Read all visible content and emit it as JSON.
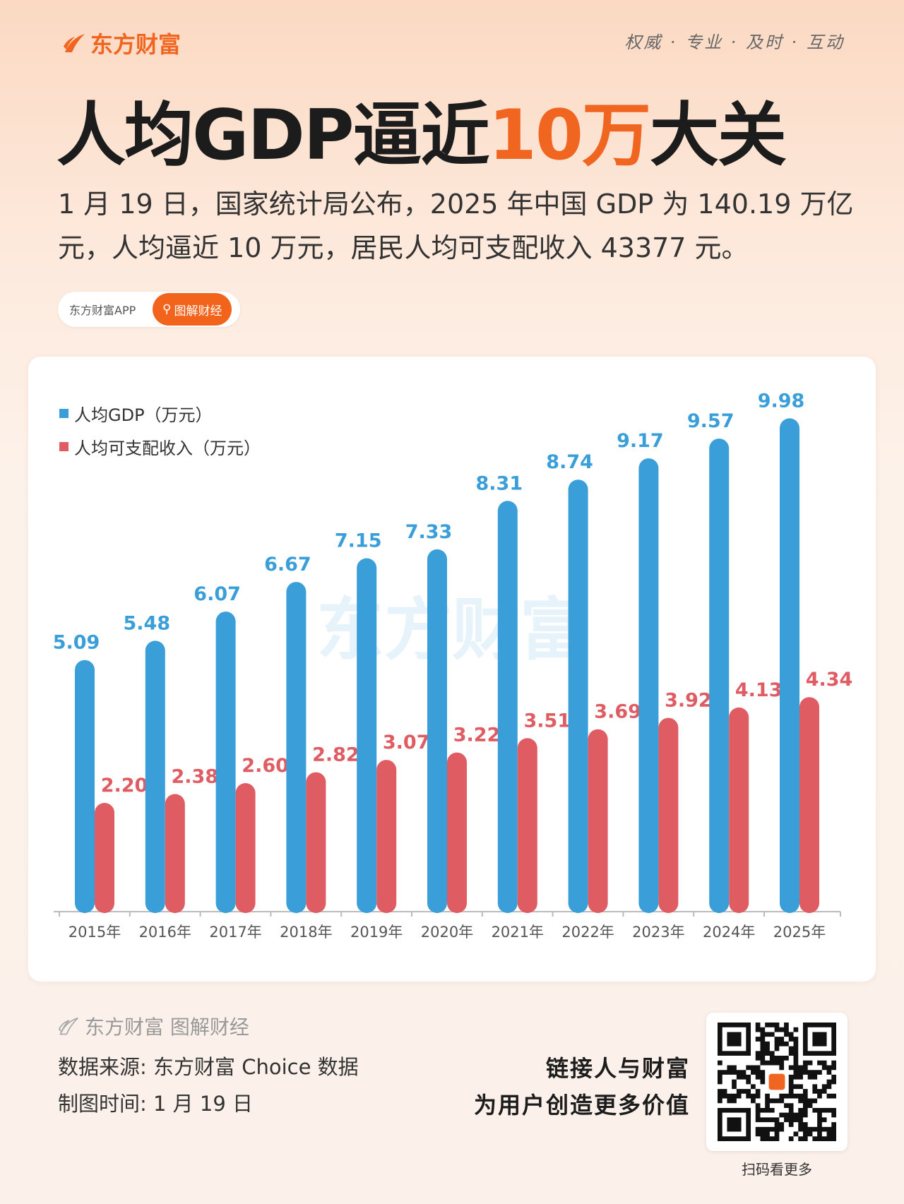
{
  "header": {
    "logo": "东方财富",
    "slogan": "权威 · 专业 · 及时 · 互动",
    "title_pre": "人均GDP逼近",
    "title_hl": "10万",
    "title_post": "大关",
    "intro": "1 月 19 日，国家统计局公布，2025 年中国 GDP 为 140.19 万亿元，人均逼近 10 万元，居民人均可支配收入 43377 元。",
    "pill_app": "东方财富APP",
    "pill_tag": "图解财经"
  },
  "colors": {
    "accent": "#f0651f",
    "gdp": "#3a9fd9",
    "income": "#e05c63"
  },
  "chart_data": {
    "type": "bar",
    "title": "",
    "ylim": [
      0,
      10.5
    ],
    "grid": false,
    "legend": "top-left",
    "watermark": "东方财富",
    "categories": [
      "2015年",
      "2016年",
      "2017年",
      "2018年",
      "2019年",
      "2020年",
      "2021年",
      "2022年",
      "2023年",
      "2024年",
      "2025年"
    ],
    "series": [
      {
        "name": "人均GDP（万元）",
        "values": [
          5.09,
          5.48,
          6.07,
          6.67,
          7.15,
          7.33,
          8.31,
          8.74,
          9.17,
          9.57,
          9.98
        ]
      },
      {
        "name": "人均可支配收入（万元）",
        "values": [
          2.2,
          2.38,
          2.6,
          2.82,
          3.07,
          3.22,
          3.51,
          3.69,
          3.92,
          4.13,
          4.34
        ]
      }
    ]
  },
  "footer": {
    "logo": "东方财富 图解财经",
    "source": "数据来源: 东方财富 Choice 数据",
    "date": "制图时间: 1 月 19 日",
    "tag1": "链接人与财富",
    "tag2": "为用户创造更多价值",
    "qr_caption": "扫码看更多"
  }
}
